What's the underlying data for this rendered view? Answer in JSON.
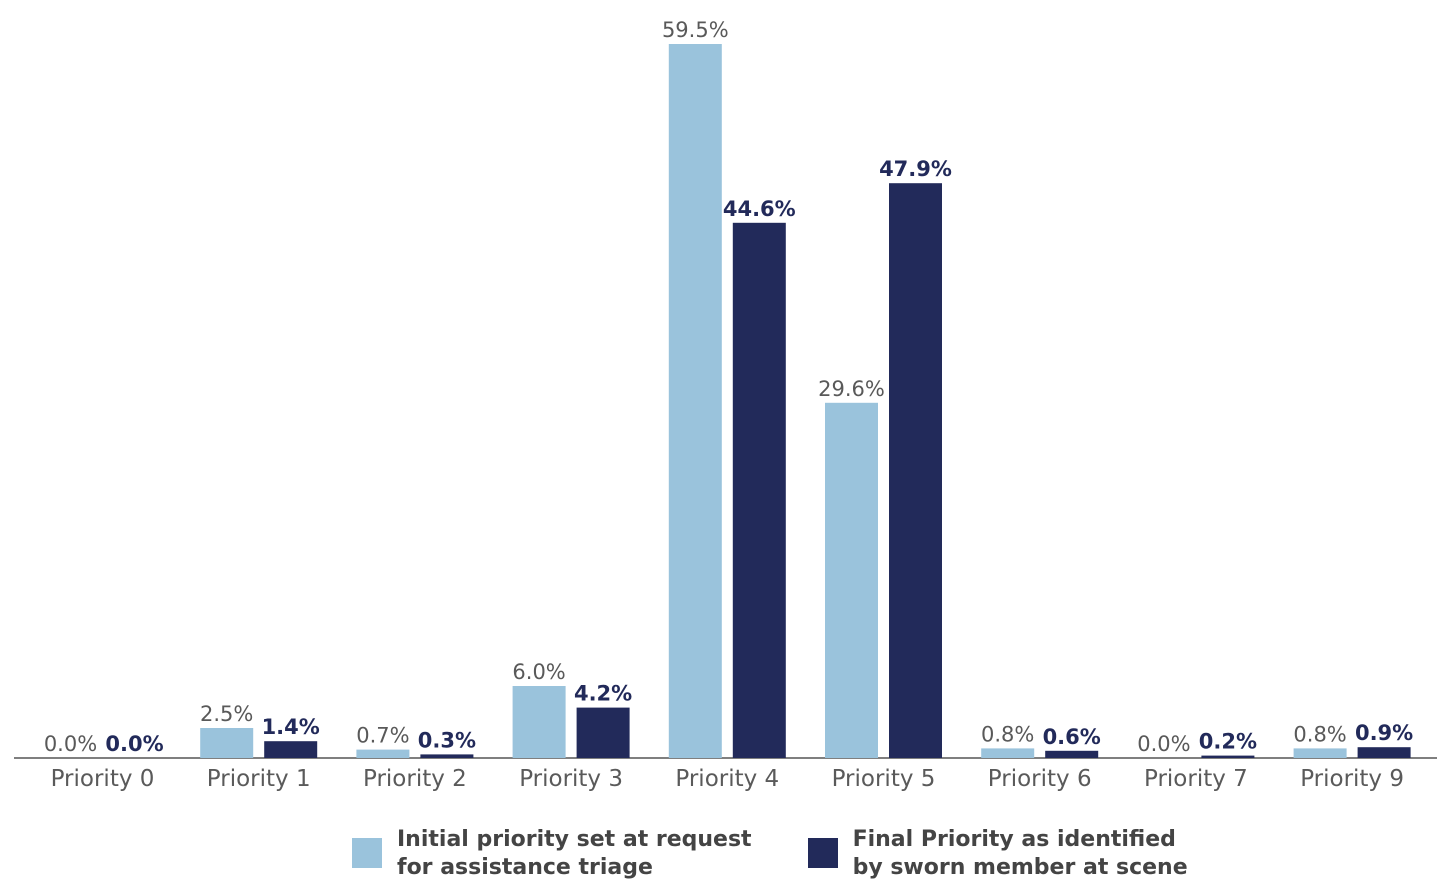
{
  "chart_data": {
    "type": "bar",
    "categories": [
      "Priority 0",
      "Priority 1",
      "Priority 2",
      "Priority 3",
      "Priority 4",
      "Priority 5",
      "Priority 6",
      "Priority 7",
      "Priority 9"
    ],
    "series": [
      {
        "name": "Initial priority set at request for assistance triage",
        "name_lines": [
          "Initial priority set at request",
          "for assistance triage"
        ],
        "color": "#9ac3dc",
        "values": [
          0.0,
          2.5,
          0.7,
          6.0,
          59.5,
          29.6,
          0.8,
          0.0,
          0.8
        ],
        "labels": [
          "0.0%",
          "2.5%",
          "0.7%",
          "6.0%",
          "59.5%",
          "29.6%",
          "0.8%",
          "0.0%",
          "0.8%"
        ]
      },
      {
        "name": "Final Priority as identified by sworn member at scene",
        "name_lines": [
          "Final Priority as identified",
          "by sworn member at scene"
        ],
        "color": "#222a5a",
        "values": [
          0.0,
          1.4,
          0.3,
          4.2,
          44.6,
          47.9,
          0.6,
          0.2,
          0.9
        ],
        "labels": [
          "0.0%",
          "1.4%",
          "0.3%",
          "4.2%",
          "44.6%",
          "47.9%",
          "0.6%",
          "0.2%",
          "0.9%"
        ]
      }
    ],
    "ylim": [
      0,
      59.5
    ],
    "grid": false,
    "legend_position": "bottom"
  }
}
